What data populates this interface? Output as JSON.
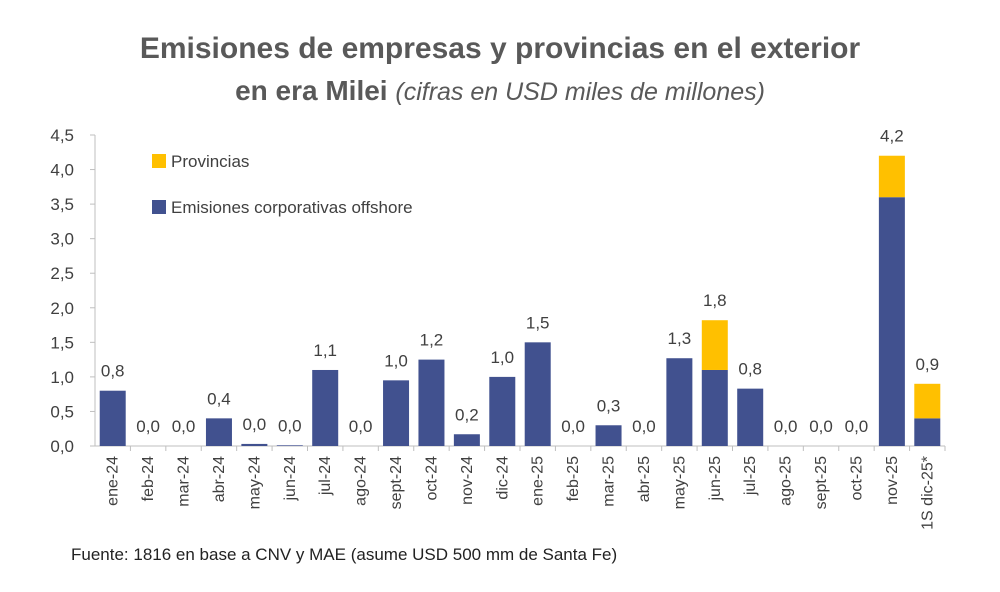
{
  "header": {
    "title_line1": "Emisiones de empresas y provincias en el exterior",
    "title_line2_bold": "en era Milei",
    "title_line2_italic": "(cifras en USD miles de millones)"
  },
  "source": "Fuente: 1816 en base a CNV y MAE (asume USD 500 mm de Santa Fe)",
  "colors": {
    "corporate": "#41518F",
    "provinces": "#FFC000",
    "axis": "#BFBFBF",
    "text": "#404040"
  },
  "chart_data": {
    "type": "bar",
    "stacked": true,
    "ylim": [
      0,
      4.5
    ],
    "yticks": [
      "0,0",
      "0,5",
      "1,0",
      "1,5",
      "2,0",
      "2,5",
      "3,0",
      "3,5",
      "4,0",
      "4,5"
    ],
    "ytick_values": [
      0,
      0.5,
      1.0,
      1.5,
      2.0,
      2.5,
      3.0,
      3.5,
      4.0,
      4.5
    ],
    "grid": false,
    "legend_position": "top-left",
    "categories": [
      "ene-24",
      "feb-24",
      "mar-24",
      "abr-24",
      "may-24",
      "jun-24",
      "jul-24",
      "ago-24",
      "sept-24",
      "oct-24",
      "nov-24",
      "dic-24",
      "ene-25",
      "feb-25",
      "mar-25",
      "abr-25",
      "may-25",
      "jun-25",
      "jul-25",
      "ago-25",
      "sept-25",
      "oct-25",
      "nov-25",
      "1S dic-25*"
    ],
    "series": [
      {
        "name": "Emisiones corporativas offshore",
        "color": "#41518F",
        "values": [
          0.8,
          0.0,
          0.0,
          0.4,
          0.03,
          0.01,
          1.1,
          0.0,
          0.95,
          1.25,
          0.17,
          1.0,
          1.5,
          0.0,
          0.3,
          0.0,
          1.27,
          1.1,
          0.83,
          0.0,
          0.0,
          0.0,
          3.6,
          0.4
        ]
      },
      {
        "name": "Provincias",
        "color": "#FFC000",
        "values": [
          0,
          0,
          0,
          0,
          0,
          0,
          0,
          0,
          0,
          0,
          0,
          0,
          0,
          0,
          0,
          0,
          0,
          0.72,
          0,
          0,
          0,
          0,
          0.6,
          0.5
        ]
      }
    ],
    "total_labels": [
      "0,8",
      "0,0",
      "0,0",
      "0,4",
      "0,0",
      "0,0",
      "1,1",
      "0,0",
      "1,0",
      "1,2",
      "0,2",
      "1,0",
      "1,5",
      "0,0",
      "0,3",
      "0,0",
      "1,3",
      "1,8",
      "0,8",
      "0,0",
      "0,0",
      "0,0",
      "4,2",
      "0,9"
    ],
    "legend": [
      "Provincias",
      "Emisiones corporativas offshore"
    ]
  }
}
